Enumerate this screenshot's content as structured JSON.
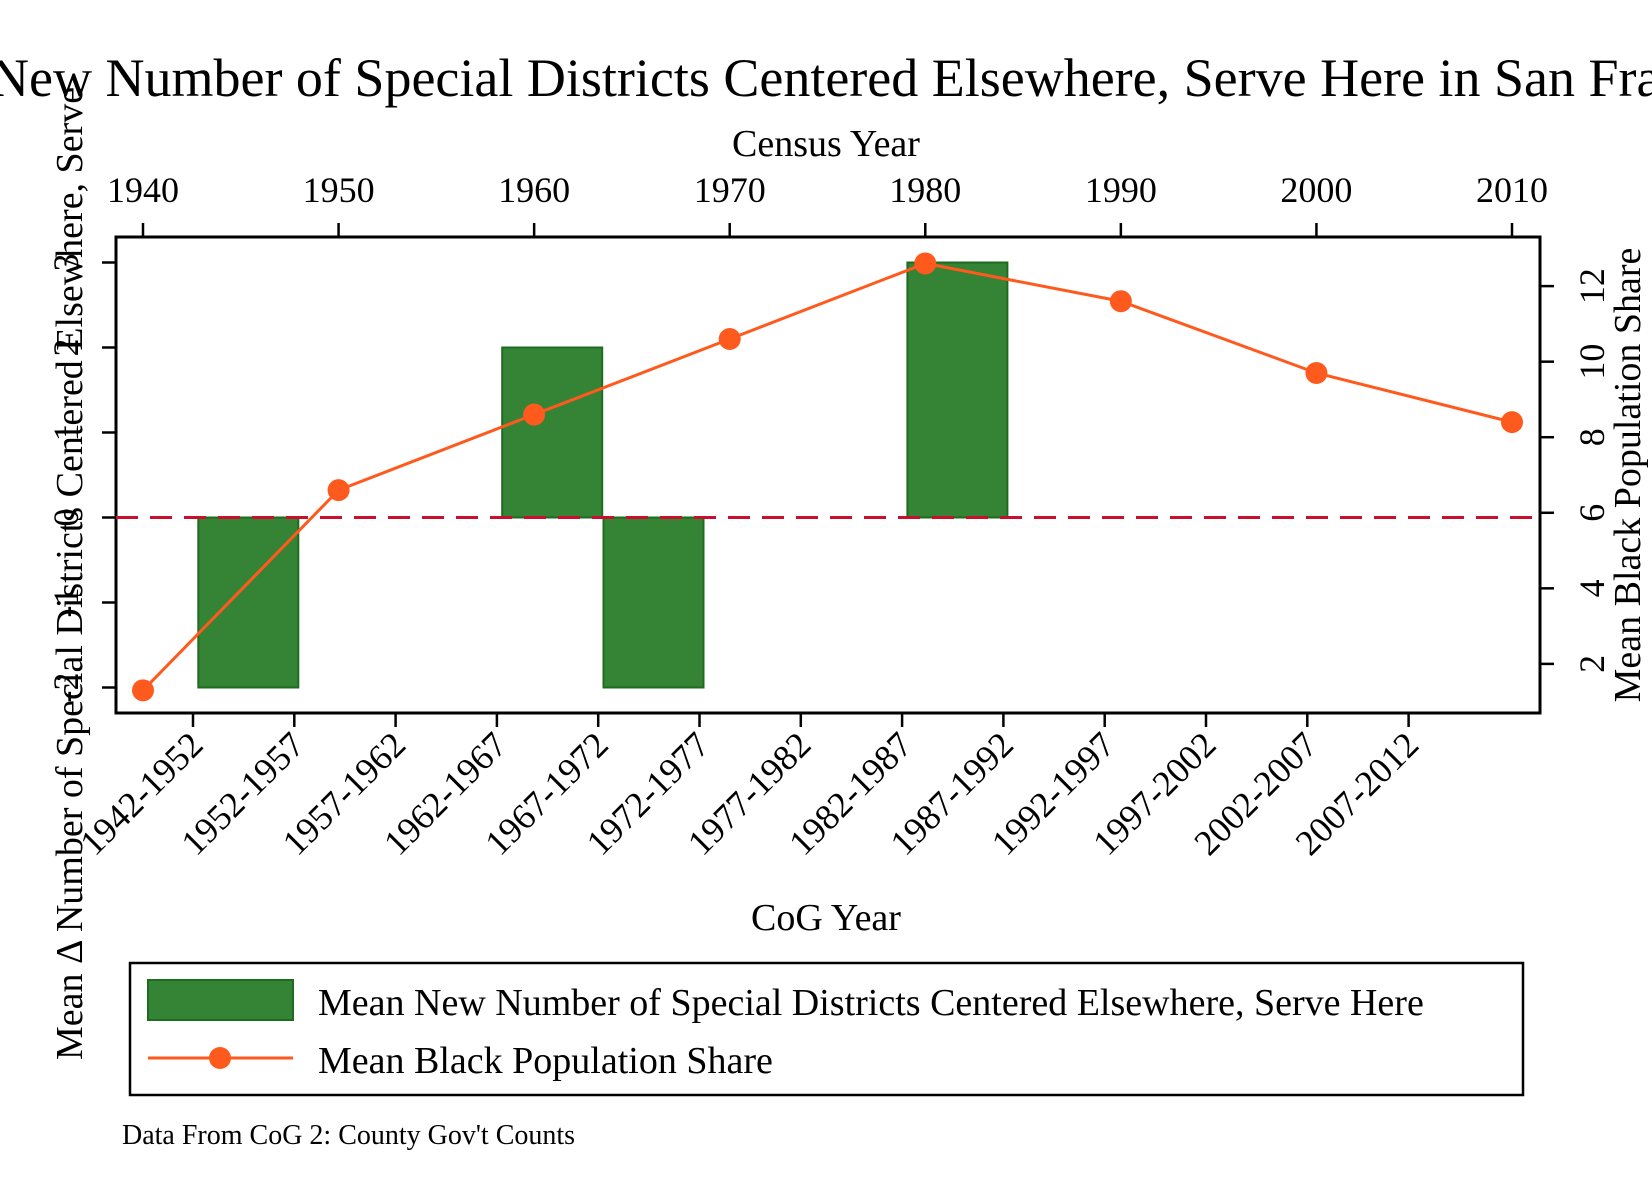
{
  "chart_data": {
    "type": "bar",
    "title": "Mean New Number of Special Districts Centered Elsewhere, Serve Here in San Francisco",
    "top_axis": {
      "label": "Census Year",
      "ticks": [
        "1940",
        "1950",
        "1960",
        "1970",
        "1980",
        "1990",
        "2000",
        "2010"
      ],
      "range": [
        1940,
        2010
      ]
    },
    "bottom_axis": {
      "label": "CoG Year",
      "categories": [
        "1942-1952",
        "1952-1957",
        "1957-1962",
        "1962-1967",
        "1967-1972",
        "1972-1977",
        "1977-1982",
        "1982-1987",
        "1987-1992",
        "1992-1997",
        "1997-2002",
        "2002-2007",
        "2007-2012"
      ]
    },
    "left_axis": {
      "label": "Mean Δ Number of Special Districts Centered Elsewhere, Serve",
      "ticks": [
        "-2",
        "-1",
        "0",
        "1",
        "2",
        "3"
      ],
      "ylim": [
        -2.3,
        3.3
      ]
    },
    "right_axis": {
      "label": "Mean Black Population Share",
      "ticks": [
        "2",
        "4",
        "6",
        "8",
        "10",
        "12"
      ],
      "ylim": [
        0.7,
        13.3
      ]
    },
    "reference_line": {
      "y": 0,
      "color": "#c8102e"
    },
    "series": [
      {
        "name": "Mean New Number of Special Districts Centered Elsewhere, Serve Here",
        "type": "bar",
        "axis": "left",
        "color": "#358335",
        "categories": [
          "1942-1952",
          "1952-1957",
          "1957-1962",
          "1962-1967",
          "1967-1972",
          "1972-1977",
          "1977-1982",
          "1982-1987",
          "1987-1992",
          "1992-1997",
          "1997-2002",
          "2002-2007",
          "2007-2012"
        ],
        "values": [
          0,
          -2,
          0,
          0,
          2,
          -2,
          0,
          0,
          3,
          0,
          0,
          0,
          0
        ]
      },
      {
        "name": "Mean Black Population Share",
        "type": "line",
        "axis": "right",
        "color": "#ff5a1e",
        "x": [
          1940,
          1950,
          1960,
          1970,
          1980,
          1990,
          2000,
          2010
        ],
        "values": [
          1.3,
          6.6,
          8.6,
          10.6,
          12.6,
          11.6,
          9.7,
          8.4
        ]
      }
    ],
    "legend": {
      "placement": "bottom",
      "entries": [
        "Mean New Number of Special Districts Centered Elsewhere, Serve Here",
        "Mean Black Population Share"
      ]
    },
    "note": "Data From CoG 2: County Gov't Counts",
    "grid": false
  }
}
